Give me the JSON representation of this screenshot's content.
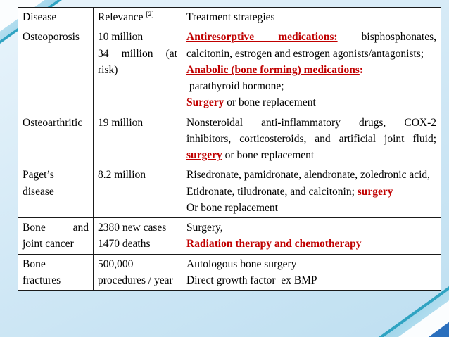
{
  "slide": {
    "background_color": "#cfe7f5",
    "accent_teal": "#2fa3c2",
    "emphasis_red": "#c00000"
  },
  "table": {
    "headers": [
      {
        "text": "Disease"
      },
      {
        "text": "Relevance ",
        "superscript": "[2]"
      },
      {
        "text": "Treatment strategies"
      }
    ],
    "rows": [
      {
        "disease": [
          "Osteoporosis"
        ],
        "relevance": [
          "10 million",
          "34 million (at risk)"
        ],
        "treatment": [
          [
            {
              "t": "Antiresorptive medications:",
              "red": true,
              "u": true
            },
            {
              "t": " bisphosphonates, calcitonin, estrogen and estrogen agonists/antagonists;"
            }
          ],
          [
            {
              "t": "Anabolic (bone forming) medications",
              "red": true,
              "u": true
            },
            {
              "t": ":",
              "red": true
            }
          ],
          [
            {
              "t": " parathyroid hormone;"
            }
          ],
          [
            {
              "t": "Surgery",
              "red": true
            },
            {
              "t": " or bone replacement"
            }
          ]
        ]
      },
      {
        "disease": [
          "Osteoarthritic"
        ],
        "relevance": [
          "19 million"
        ],
        "treatment": [
          [
            {
              "t": "Nonsteroidal anti-inflammatory drugs, COX-2 inhibitors, corticosteroids, and artificial joint fluid; "
            },
            {
              "t": "surgery",
              "red": true,
              "u": true
            },
            {
              "t": " or bone replacement"
            }
          ]
        ]
      },
      {
        "disease": [
          "Paget’s",
          "disease"
        ],
        "relevance": [
          "8.2 million"
        ],
        "treatment": [
          [
            {
              "t": "Risedronate, pamidronate, alendronate, zoledronic acid,"
            }
          ],
          [
            {
              "t": "Etidronate, tiludronate, and calcitonin; "
            },
            {
              "t": "surgery",
              "red": true,
              "u": true
            }
          ],
          [
            {
              "t": "Or bone replacement"
            }
          ]
        ]
      },
      {
        "disease": [
          "Bone and",
          "joint cancer"
        ],
        "relevance": [
          "2380 new cases",
          "1470 deaths"
        ],
        "treatment": [
          [
            {
              "t": "Surgery,"
            }
          ],
          [
            {
              "t": "Radiation therapy and chemotherapy",
              "red": true,
              "u": true
            }
          ]
        ]
      },
      {
        "disease": [
          "Bone",
          "fractures"
        ],
        "relevance": [
          "500,000 procedures / year"
        ],
        "treatment": [
          [
            {
              "t": "Autologous bone surgery"
            }
          ],
          [
            {
              "t": "Direct growth factor  ex BMP"
            }
          ]
        ]
      }
    ]
  }
}
